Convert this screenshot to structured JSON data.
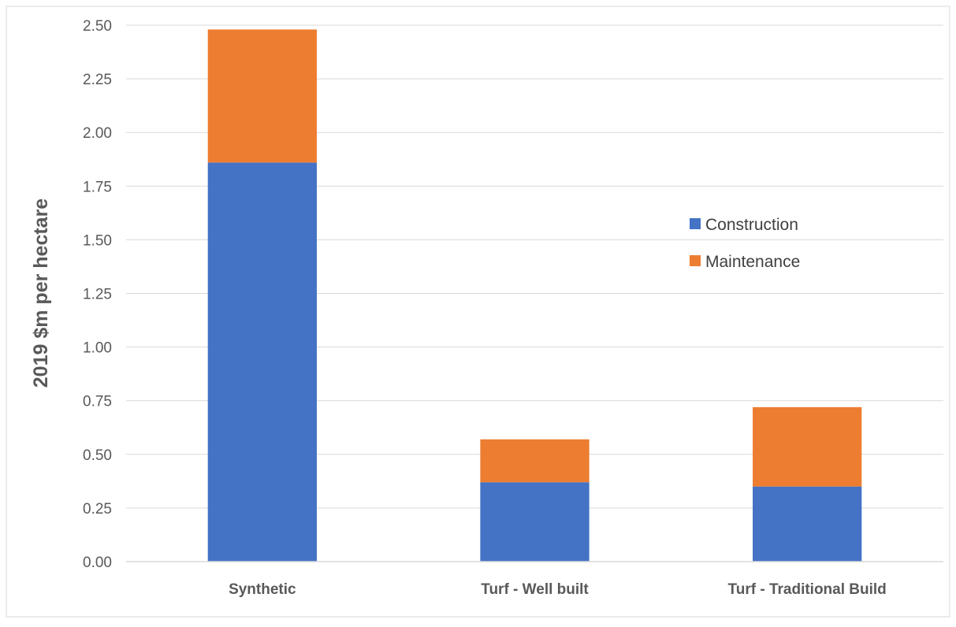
{
  "chart_data": {
    "type": "bar",
    "stacked": true,
    "categories": [
      "Synthetic",
      "Turf - Well built",
      "Turf - Traditional Build"
    ],
    "series": [
      {
        "name": "Construction",
        "values": [
          1.86,
          0.37,
          0.35
        ],
        "color": "#4472C4"
      },
      {
        "name": "Maintenance",
        "values": [
          0.62,
          0.2,
          0.37
        ],
        "color": "#ED7D31"
      }
    ],
    "ylabel": "2019 $m per hectare",
    "ylim": [
      0,
      2.5
    ],
    "yticks": [
      "0.00",
      "0.25",
      "0.50",
      "0.75",
      "1.00",
      "1.25",
      "1.50",
      "1.75",
      "2.00",
      "2.25",
      "2.50"
    ],
    "grid": true,
    "legend_position": "right"
  }
}
